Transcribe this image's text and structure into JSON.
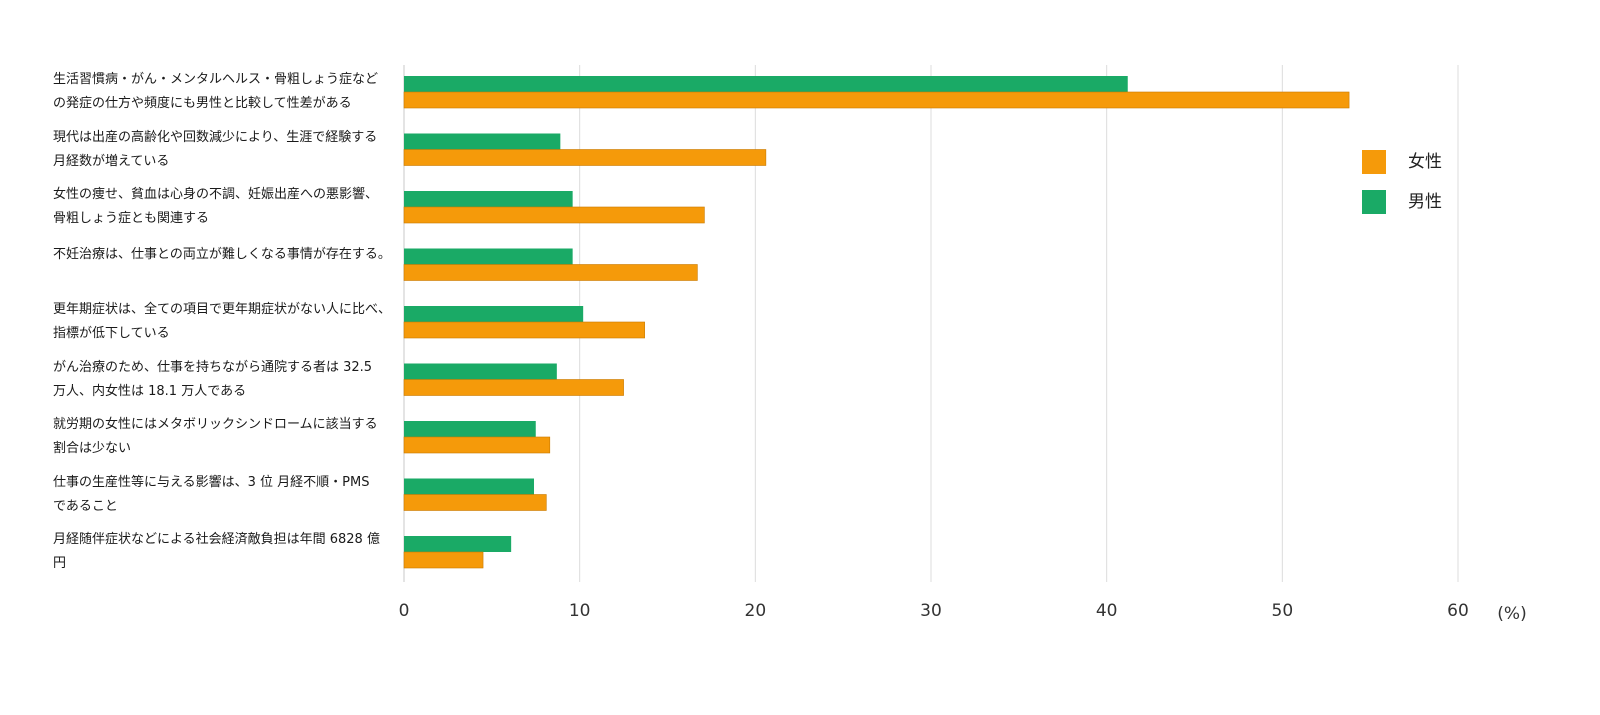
{
  "chart_data": {
    "type": "bar",
    "orientation": "horizontal",
    "categories": [
      "生活習慣病・がん・メンタルヘルス・骨粗しょう症など\nの発症の仕方や頻度にも男性と比較して性差がある",
      "現代は出産の高齢化や回数減少により、生涯で経験する\n月経数が増えている",
      "女性の痩せ、貧血は心身の不調、妊娠出産への悪影響、\n骨粗しょう症とも関連する",
      "不妊治療は、仕事との両立が難しくなる事情が存在する。",
      "更年期症状は、全ての項目で更年期症状がない人に比べ、\n指標が低下している",
      "がん治療のため、仕事を持ちながら通院する者は 32.5\n万人、内女性は 18.1 万人である",
      "就労期の女性にはメタボリックシンドロームに該当する\n割合は少ない",
      "仕事の生産性等に与える影響は、3 位 月経不順・PMS\nであること",
      "月経随伴症状などによる社会経済敵負担は年間 6828 億\n円"
    ],
    "series": [
      {
        "name": "男性",
        "color": "#1aaa66",
        "values": [
          41.2,
          8.9,
          9.6,
          9.6,
          10.2,
          8.7,
          7.5,
          7.4,
          6.1
        ]
      },
      {
        "name": "女性",
        "color": "#f59a0a",
        "values": [
          53.8,
          20.6,
          17.1,
          16.7,
          13.7,
          12.5,
          8.3,
          8.1,
          4.5
        ]
      }
    ],
    "legend": {
      "position": "right",
      "entries": [
        {
          "name": "女性",
          "color": "#f59a0a"
        },
        {
          "name": "男性",
          "color": "#1aaa66"
        }
      ]
    },
    "xlim": [
      0,
      60
    ],
    "xticks": [
      "0",
      "10",
      "20",
      "30",
      "40",
      "50",
      "60"
    ],
    "xunit": "(%)",
    "grid": true
  }
}
